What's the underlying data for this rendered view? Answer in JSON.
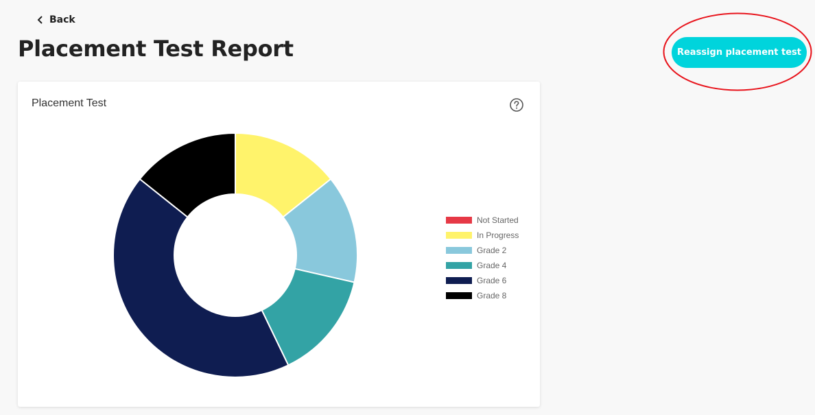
{
  "header": {
    "back_label": "Back",
    "title": "Placement Test Report",
    "reassign_label": "Reassign placement test"
  },
  "annotation": {
    "color": "#e8141c"
  },
  "card": {
    "title": "Placement Test",
    "help_icon": "question-circle-icon"
  },
  "chart_data": {
    "type": "pie",
    "title": "Placement Test",
    "legend_position": "right",
    "categories": [
      "Not Started",
      "In Progress",
      "Grade 2",
      "Grade 4",
      "Grade 6",
      "Grade 8"
    ],
    "values": [
      0,
      1,
      1,
      1,
      3,
      1
    ],
    "colors": [
      "#e63946",
      "#fff36b",
      "#89c8dc",
      "#33a3a5",
      "#0f1d51",
      "#000000"
    ]
  }
}
